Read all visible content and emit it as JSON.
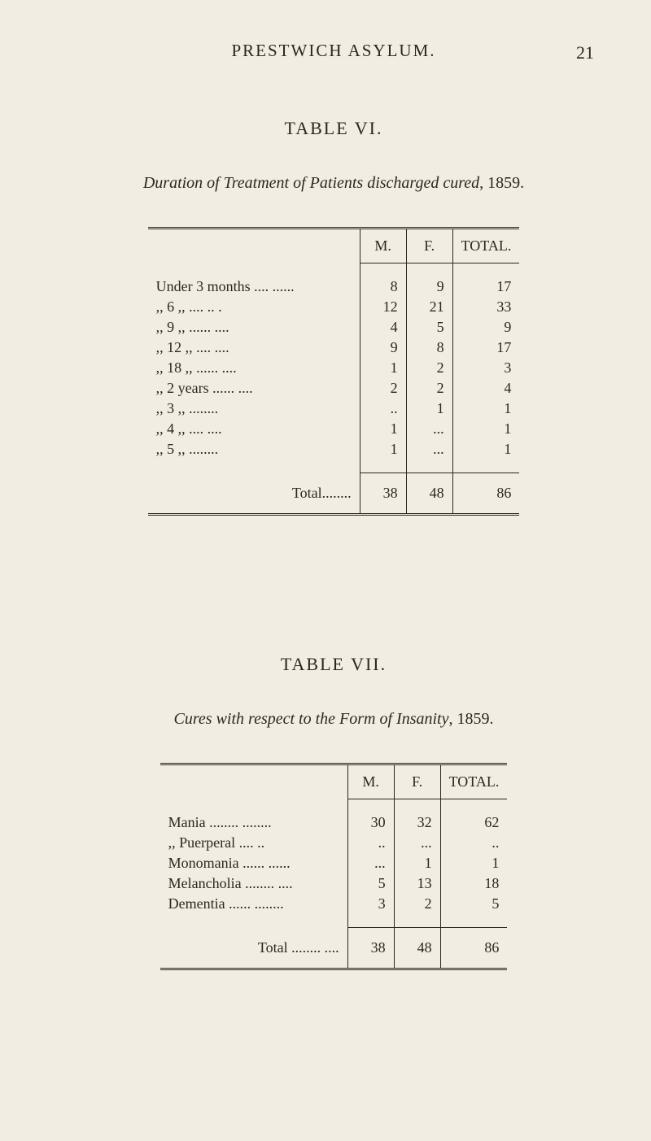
{
  "page": {
    "running_head": "PRESTWICH ASYLUM.",
    "page_number": "21"
  },
  "colors": {
    "background": "#f2ede3",
    "text": "#2a2622",
    "rule": "#2a2622"
  },
  "typography": {
    "body_font": "Times New Roman",
    "body_size_pt": 14,
    "caption_style": "italic",
    "smallcaps_headers": true
  },
  "table6": {
    "label": "TABLE VI.",
    "caption_prefix": "Duration of Treatment of Patients discharged cured",
    "caption_year": ", 1859.",
    "columns": [
      "M.",
      "F.",
      "TOTAL."
    ],
    "rows": [
      {
        "label": "Under 3 months ....   ......",
        "m": "8",
        "f": "9",
        "t": "17"
      },
      {
        "label": "   ,,    6     ,,     ....    .. .",
        "m": "12",
        "f": "21",
        "t": "33"
      },
      {
        "label": "   ,,    9     ,,    ......   ....",
        "m": "4",
        "f": "5",
        "t": "9"
      },
      {
        "label": "   ,,   12    ,,     ....    ....",
        "m": "9",
        "f": "8",
        "t": "17"
      },
      {
        "label": "   ,,   18    ,,    ......   ....",
        "m": "1",
        "f": "2",
        "t": "3"
      },
      {
        "label": "   ,,    2  years ......   ....",
        "m": "2",
        "f": "2",
        "t": "4"
      },
      {
        "label": "   ,,    3     ,,        ........",
        "m": "..",
        "f": "1",
        "t": "1"
      },
      {
        "label": "   ,,    4     ,,     ....   ....",
        "m": "1",
        "f": "...",
        "t": "1"
      },
      {
        "label": "   ,,    5     ,,        ........",
        "m": "1",
        "f": "...",
        "t": "1"
      }
    ],
    "total_label": "Total........",
    "total": {
      "m": "38",
      "f": "48",
      "t": "86"
    }
  },
  "table7": {
    "label": "TABLE VII.",
    "caption_prefix": "Cures with respect to the Form of Insanity",
    "caption_year": ", 1859.",
    "columns": [
      "M.",
      "F.",
      "TOTAL."
    ],
    "rows": [
      {
        "label": "Mania ........     ........",
        "m": "30",
        "f": "32",
        "t": "62"
      },
      {
        "label": "  ,,     Puerperal ....    ..",
        "m": "..",
        "f": "...",
        "t": ".."
      },
      {
        "label": "Monomania ......    ......",
        "m": "...",
        "f": "1",
        "t": "1"
      },
      {
        "label": "Melancholia ........   ....",
        "m": "5",
        "f": "13",
        "t": "18"
      },
      {
        "label": "Dementia ......    ........",
        "m": "3",
        "f": "2",
        "t": "5"
      }
    ],
    "total_label": "Total ........    ....",
    "total": {
      "m": "38",
      "f": "48",
      "t": "86"
    }
  }
}
